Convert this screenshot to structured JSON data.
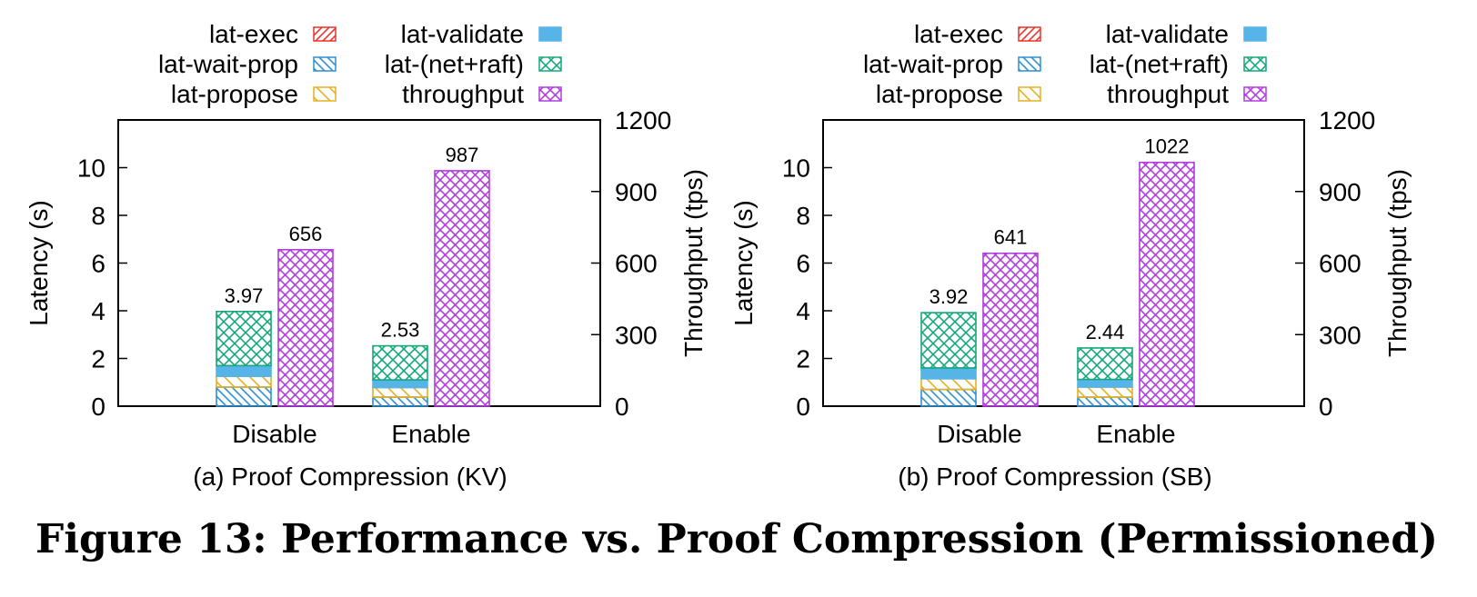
{
  "figure": {
    "caption": "Figure 13: Performance vs. Proof Compression (Permissioned)"
  },
  "colors": {
    "lat-exec": "#e8342a",
    "lat-wait-prop": "#2f8fd1",
    "lat-propose": "#e6b020",
    "lat-validate": "#56b4e9",
    "lat-(net+raft)": "#16a87a",
    "throughput": "#b23ce0"
  },
  "chart_data": [
    {
      "type": "bar",
      "subcaption": "(a) Proof Compression (KV)",
      "categories": [
        "Disable",
        "Enable"
      ],
      "ylabel": "Latency (s)",
      "y2label": "Throughput (tps)",
      "ylim": [
        0,
        12
      ],
      "y2lim": [
        0,
        1200
      ],
      "yticks": [
        0,
        2,
        4,
        6,
        8,
        10
      ],
      "y2ticks": [
        0,
        300,
        600,
        900,
        1200
      ],
      "legend": {
        "placement": "top",
        "entries": [
          "lat-exec",
          "lat-wait-prop",
          "lat-propose",
          "lat-validate",
          "lat-(net+raft)",
          "throughput"
        ]
      },
      "latency_stack": [
        {
          "name": "lat-exec",
          "values": [
            0.0,
            0.0
          ]
        },
        {
          "name": "lat-wait-prop",
          "values": [
            0.8,
            0.38
          ]
        },
        {
          "name": "lat-propose",
          "values": [
            0.45,
            0.4
          ]
        },
        {
          "name": "lat-validate",
          "values": [
            0.45,
            0.32
          ]
        },
        {
          "name": "lat-(net+raft)",
          "values": [
            2.27,
            1.43
          ]
        }
      ],
      "latency_totals": [
        3.97,
        2.53
      ],
      "latency_labels": [
        "3.97",
        "2.53"
      ],
      "throughput": {
        "name": "throughput",
        "values": [
          656,
          987
        ]
      },
      "throughput_labels": [
        "656",
        "987"
      ]
    },
    {
      "type": "bar",
      "subcaption": "(b) Proof Compression (SB)",
      "categories": [
        "Disable",
        "Enable"
      ],
      "ylabel": "Latency (s)",
      "y2label": "Throughput (tps)",
      "ylim": [
        0,
        12
      ],
      "y2lim": [
        0,
        1200
      ],
      "yticks": [
        0,
        2,
        4,
        6,
        8,
        10
      ],
      "y2ticks": [
        0,
        300,
        600,
        900,
        1200
      ],
      "legend": {
        "placement": "top",
        "entries": [
          "lat-exec",
          "lat-wait-prop",
          "lat-propose",
          "lat-validate",
          "lat-(net+raft)",
          "throughput"
        ]
      },
      "latency_stack": [
        {
          "name": "lat-exec",
          "values": [
            0.0,
            0.0
          ]
        },
        {
          "name": "lat-wait-prop",
          "values": [
            0.7,
            0.38
          ]
        },
        {
          "name": "lat-propose",
          "values": [
            0.45,
            0.42
          ]
        },
        {
          "name": "lat-validate",
          "values": [
            0.45,
            0.32
          ]
        },
        {
          "name": "lat-(net+raft)",
          "values": [
            2.32,
            1.32
          ]
        }
      ],
      "latency_totals": [
        3.92,
        2.44
      ],
      "latency_labels": [
        "3.92",
        "2.44"
      ],
      "throughput": {
        "name": "throughput",
        "values": [
          641,
          1022
        ]
      },
      "throughput_labels": [
        "641",
        "1022"
      ]
    }
  ]
}
